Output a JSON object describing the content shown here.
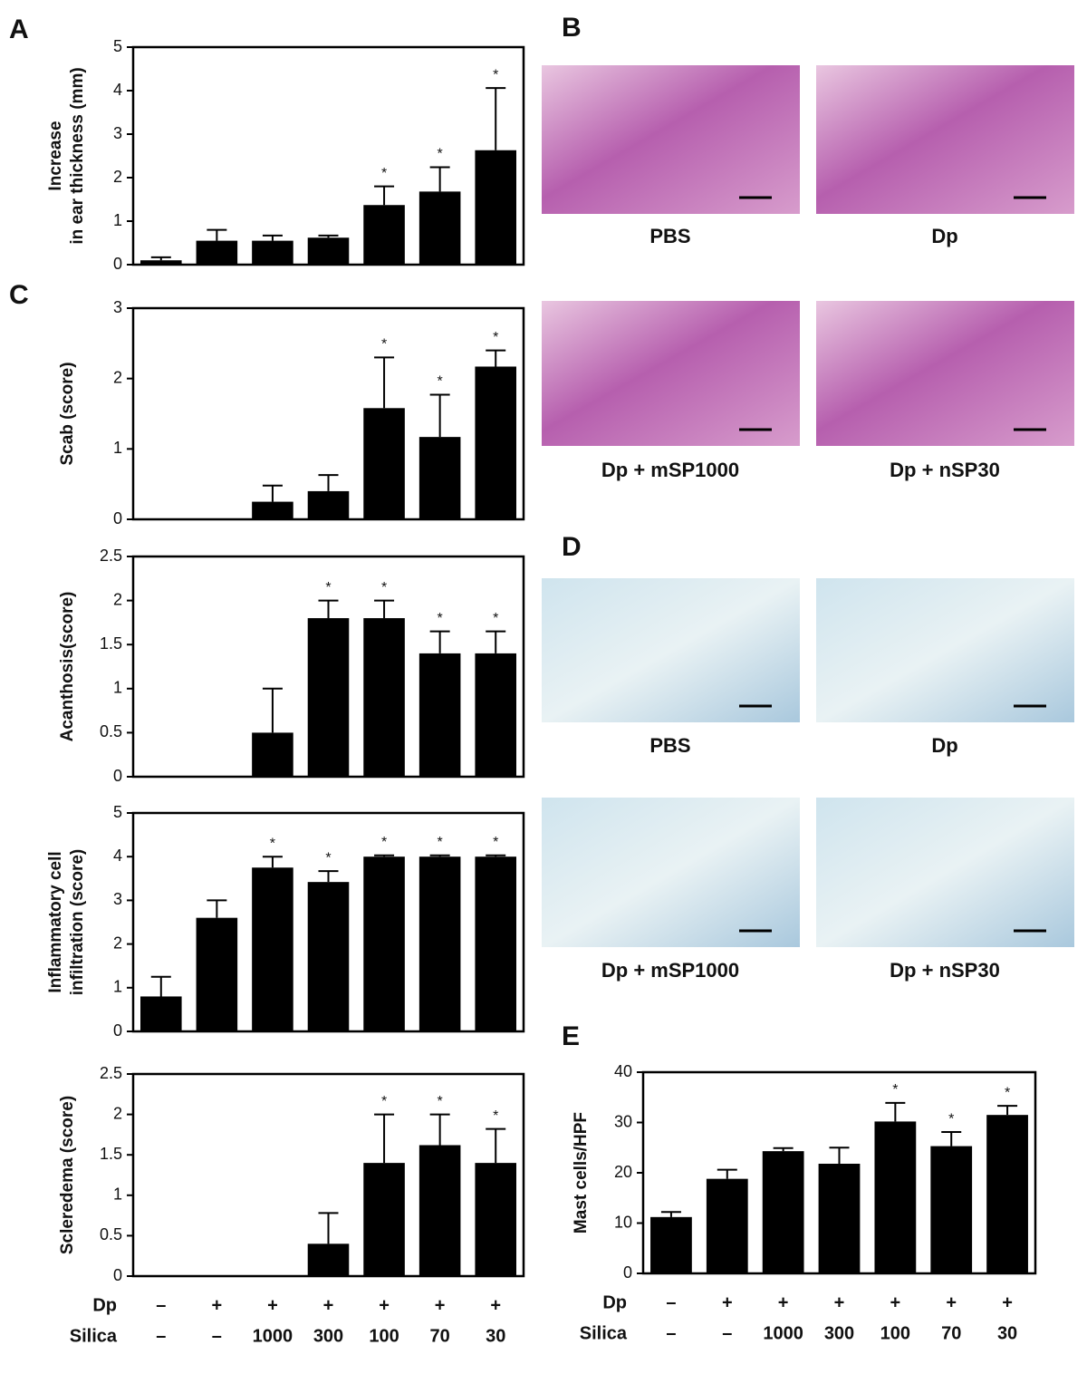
{
  "panel_letters": [
    "A",
    "B",
    "C",
    "D",
    "E"
  ],
  "histology_B": {
    "captions": [
      "PBS",
      "Dp",
      "Dp + mSP1000",
      "Dp + nSP30"
    ]
  },
  "histology_D": {
    "captions": [
      "PBS",
      "Dp",
      "Dp + mSP1000",
      "Dp + nSP30"
    ]
  },
  "chart_data": [
    {
      "type": "bar",
      "ylabel": [
        "Increase",
        "in ear thickness (mm)"
      ],
      "color": "#000000",
      "values": [
        0.1,
        0.55,
        0.55,
        0.62,
        1.37,
        1.68,
        2.63
      ],
      "errors": [
        0.07,
        0.25,
        0.12,
        0.05,
        0.43,
        0.56,
        1.43
      ],
      "significance": [
        null,
        null,
        null,
        null,
        "*",
        "*",
        "*"
      ],
      "ylim": [
        0,
        5
      ],
      "yticks": [
        0,
        1,
        2,
        3,
        4,
        5
      ]
    },
    {
      "type": "bar",
      "ylabel": [
        "Scab (score)"
      ],
      "color": "#000000",
      "values": [
        0,
        0,
        0.25,
        0.4,
        1.58,
        1.17,
        2.17
      ],
      "errors": [
        0,
        0,
        0.23,
        0.23,
        0.72,
        0.6,
        0.23
      ],
      "significance": [
        null,
        null,
        null,
        null,
        "*",
        "*",
        "*"
      ],
      "ylim": [
        0,
        3
      ],
      "yticks": [
        0,
        1,
        2,
        3
      ]
    },
    {
      "type": "bar",
      "ylabel": [
        "Acanthosis(score)"
      ],
      "color": "#000000",
      "values": [
        0,
        0,
        0.5,
        1.8,
        1.8,
        1.4,
        1.4
      ],
      "errors": [
        0,
        0,
        0.5,
        0.2,
        0.2,
        0.25,
        0.25
      ],
      "significance": [
        null,
        null,
        null,
        "*",
        "*",
        "*",
        "*"
      ],
      "ylim": [
        0,
        2.5
      ],
      "yticks": [
        0,
        0.5,
        1,
        1.5,
        2,
        2.5
      ]
    },
    {
      "type": "bar",
      "ylabel": [
        "Inflammatory cell",
        "infiltration (score)"
      ],
      "color": "#000000",
      "values": [
        0.8,
        2.6,
        3.75,
        3.42,
        4,
        4,
        4
      ],
      "errors": [
        0.45,
        0.4,
        0.25,
        0.25,
        0.03,
        0.03,
        0.03
      ],
      "significance": [
        null,
        null,
        "*",
        "*",
        "*",
        "*",
        "*"
      ],
      "ylim": [
        0,
        5
      ],
      "yticks": [
        0,
        1,
        2,
        3,
        4,
        5
      ]
    },
    {
      "type": "bar",
      "ylabel": [
        "Scleredema (score)"
      ],
      "color": "#000000",
      "values": [
        0,
        0,
        0,
        0.4,
        1.4,
        1.62,
        1.4
      ],
      "errors": [
        0,
        0,
        0,
        0.38,
        0.6,
        0.38,
        0.42
      ],
      "significance": [
        null,
        null,
        null,
        null,
        "*",
        "*",
        "*"
      ],
      "ylim": [
        0,
        2.5
      ],
      "yticks": [
        0,
        0.5,
        1,
        1.5,
        2,
        2.5
      ],
      "x_label_rows": [
        {
          "name": "Dp",
          "labels": [
            "–",
            "+",
            "+",
            "+",
            "+",
            "+",
            "+"
          ]
        },
        {
          "name": "Silica",
          "labels": [
            "–",
            "–",
            "1000",
            "300",
            "100",
            "70",
            "30"
          ]
        }
      ]
    },
    {
      "type": "bar",
      "ylabel": [
        "Mast cells/HPF"
      ],
      "color": "#000000",
      "values": [
        11.2,
        18.8,
        24.3,
        21.8,
        30.2,
        25.3,
        31.5
      ],
      "errors": [
        1,
        1.8,
        0.6,
        3.2,
        3.7,
        2.8,
        1.8
      ],
      "significance": [
        null,
        null,
        null,
        null,
        "*",
        "*",
        "*"
      ],
      "ylim": [
        0,
        40
      ],
      "yticks": [
        0,
        10,
        20,
        30,
        40
      ],
      "x_label_rows": [
        {
          "name": "Dp",
          "labels": [
            "–",
            "+",
            "+",
            "+",
            "+",
            "+",
            "+"
          ]
        },
        {
          "name": "Silica",
          "labels": [
            "–",
            "–",
            "1000",
            "300",
            "100",
            "70",
            "30"
          ]
        }
      ]
    }
  ]
}
